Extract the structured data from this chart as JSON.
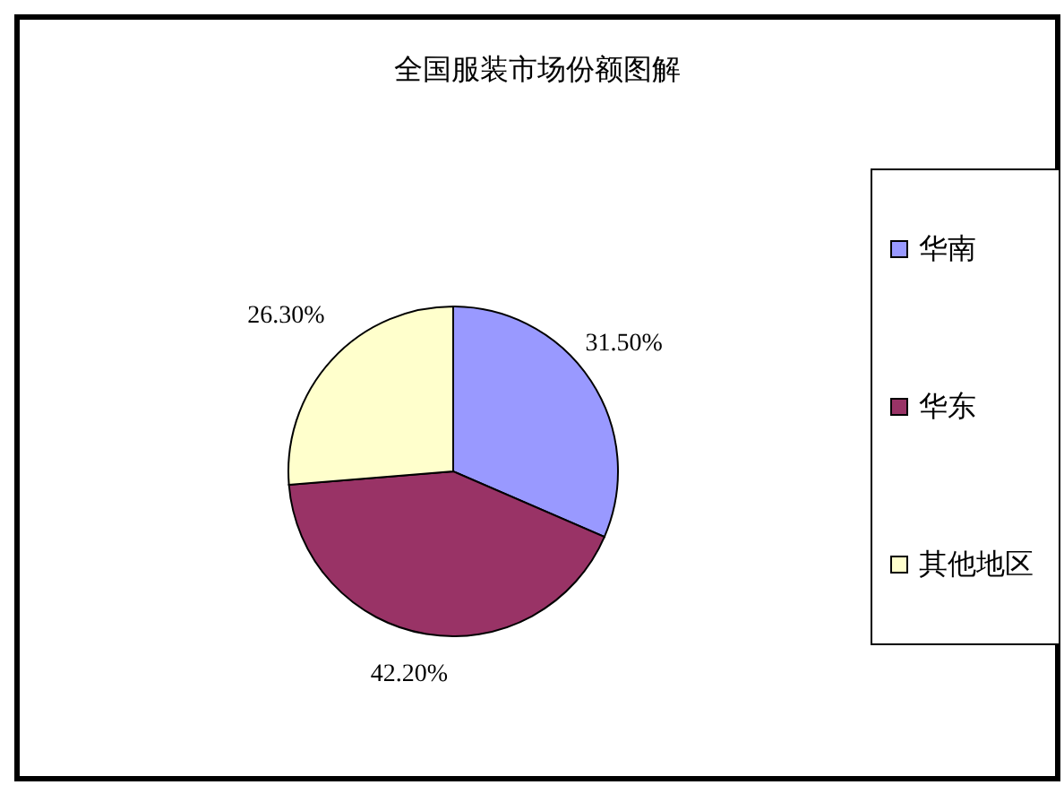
{
  "chart_data": {
    "type": "pie",
    "title": "全国服装市场份额图解",
    "categories": [
      "华南",
      "华东",
      "其他地区"
    ],
    "values": [
      31.5,
      42.2,
      26.3
    ],
    "colors": [
      "#9999ff",
      "#993366",
      "#ffffcc"
    ],
    "value_labels": [
      "31.50%",
      "42.20%",
      "26.30%"
    ],
    "legend": "right"
  }
}
